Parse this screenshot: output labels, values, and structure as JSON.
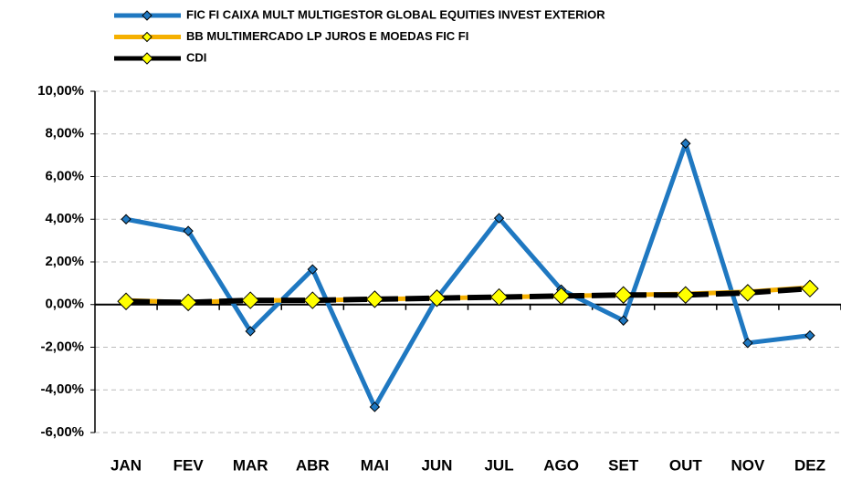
{
  "chart_data": {
    "type": "line",
    "categories": [
      "JAN",
      "FEV",
      "MAR",
      "ABR",
      "MAI",
      "JUN",
      "JUL",
      "AGO",
      "SET",
      "OUT",
      "NOV",
      "DEZ"
    ],
    "series": [
      {
        "name": "FIC FI CAIXA MULT MULTIGESTOR GLOBAL EQUITIES INVEST EXTERIOR",
        "color": "#1f78c1",
        "marker_color": "#1f78c1",
        "marker_size": 5,
        "values": [
          4.0,
          3.45,
          -1.25,
          1.65,
          -4.8,
          0.3,
          4.05,
          0.7,
          -0.75,
          7.55,
          -1.8,
          -1.45
        ]
      },
      {
        "name": "BB MULTIMERCADO LP JUROS E MOEDAS FIC FI",
        "color": "#f5b000",
        "marker_color": "#ffff00",
        "marker_size": 5,
        "values": [
          0.2,
          0.1,
          0.2,
          0.2,
          0.25,
          0.3,
          0.35,
          0.4,
          0.45,
          0.5,
          0.6,
          0.8
        ]
      },
      {
        "name": "CDI",
        "color": "#000000",
        "marker_color": "#ffff00",
        "marker_size": 9,
        "values": [
          0.15,
          0.1,
          0.2,
          0.2,
          0.25,
          0.3,
          0.35,
          0.4,
          0.45,
          0.45,
          0.55,
          0.75
        ]
      }
    ],
    "ylim": [
      -6,
      10
    ],
    "yticks": [
      {
        "value": -6,
        "label": "-6,00%"
      },
      {
        "value": -4,
        "label": "-4,00%"
      },
      {
        "value": -2,
        "label": "-2,00%"
      },
      {
        "value": 0,
        "label": "0,00%"
      },
      {
        "value": 2,
        "label": "2,00%"
      },
      {
        "value": 4,
        "label": "4,00%"
      },
      {
        "value": 6,
        "label": "6,00%"
      },
      {
        "value": 8,
        "label": "8,00%"
      },
      {
        "value": 10,
        "label": "10,00%"
      }
    ],
    "grid": true
  }
}
